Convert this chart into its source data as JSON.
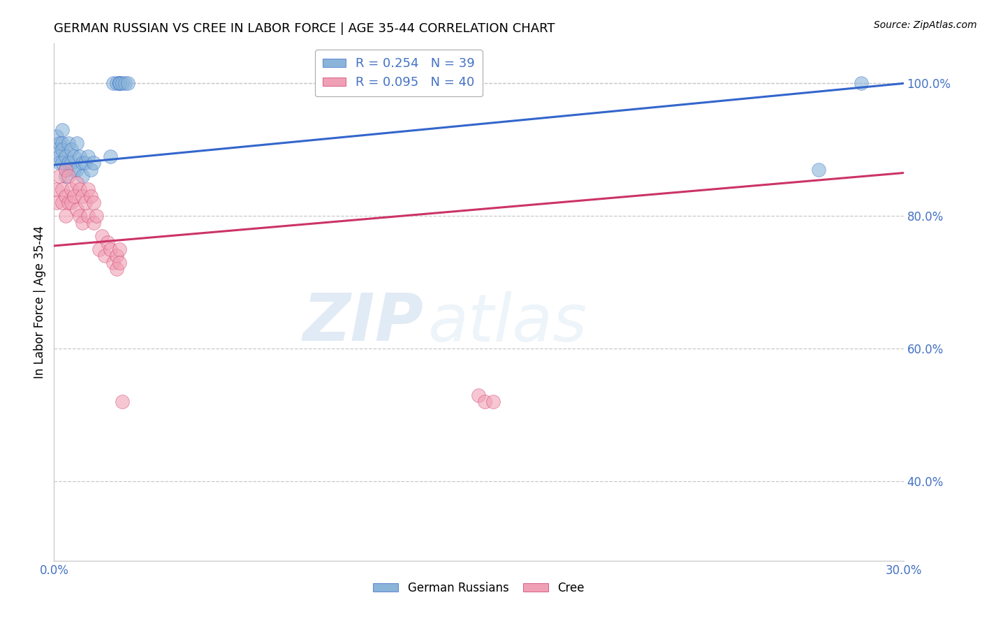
{
  "title": "GERMAN RUSSIAN VS CREE IN LABOR FORCE | AGE 35-44 CORRELATION CHART",
  "source": "Source: ZipAtlas.com",
  "ylabel": "In Labor Force | Age 35-44",
  "xlim": [
    0.0,
    0.3
  ],
  "ylim": [
    0.28,
    1.06
  ],
  "xticks": [
    0.0,
    0.3
  ],
  "xticklabels": [
    "0.0%",
    "30.0%"
  ],
  "yticks": [
    0.4,
    0.6,
    0.8,
    1.0
  ],
  "yticklabels": [
    "40.0%",
    "60.0%",
    "80.0%",
    "100.0%"
  ],
  "background_color": "#ffffff",
  "grid_color": "#c8c8c8",
  "german_russians": {
    "label": "German Russians",
    "R": 0.254,
    "N": 39,
    "color": "#8ab4d8",
    "line_color": "#3366cc",
    "x": [
      0.001,
      0.001,
      0.002,
      0.002,
      0.002,
      0.003,
      0.003,
      0.003,
      0.003,
      0.004,
      0.004,
      0.004,
      0.005,
      0.005,
      0.006,
      0.006,
      0.007,
      0.007,
      0.008,
      0.008,
      0.009,
      0.01,
      0.01,
      0.011,
      0.012,
      0.013,
      0.014,
      0.02,
      0.021,
      0.022,
      0.023,
      0.023,
      0.023,
      0.023,
      0.024,
      0.025,
      0.026,
      0.27,
      0.285
    ],
    "y": [
      0.92,
      0.9,
      0.91,
      0.89,
      0.88,
      0.93,
      0.91,
      0.9,
      0.88,
      0.89,
      0.87,
      0.86,
      0.91,
      0.88,
      0.9,
      0.88,
      0.89,
      0.87,
      0.91,
      0.87,
      0.89,
      0.88,
      0.86,
      0.88,
      0.89,
      0.87,
      0.88,
      0.89,
      1.0,
      1.0,
      1.0,
      1.0,
      1.0,
      1.0,
      1.0,
      1.0,
      1.0,
      0.87,
      1.0
    ],
    "line_x0": 0.0,
    "line_x1": 0.3,
    "line_y0": 0.877,
    "line_y1": 1.0
  },
  "cree": {
    "label": "Cree",
    "R": 0.095,
    "N": 40,
    "color": "#f0a0b5",
    "line_color": "#cc3366",
    "x": [
      0.001,
      0.001,
      0.002,
      0.003,
      0.003,
      0.004,
      0.004,
      0.004,
      0.005,
      0.005,
      0.006,
      0.006,
      0.007,
      0.008,
      0.008,
      0.009,
      0.009,
      0.01,
      0.01,
      0.011,
      0.012,
      0.012,
      0.013,
      0.014,
      0.014,
      0.015,
      0.016,
      0.017,
      0.018,
      0.019,
      0.02,
      0.021,
      0.022,
      0.022,
      0.023,
      0.023,
      0.024,
      0.15,
      0.152,
      0.155
    ],
    "y": [
      0.84,
      0.82,
      0.86,
      0.84,
      0.82,
      0.87,
      0.83,
      0.8,
      0.86,
      0.82,
      0.84,
      0.82,
      0.83,
      0.85,
      0.81,
      0.84,
      0.8,
      0.83,
      0.79,
      0.82,
      0.84,
      0.8,
      0.83,
      0.82,
      0.79,
      0.8,
      0.75,
      0.77,
      0.74,
      0.76,
      0.75,
      0.73,
      0.74,
      0.72,
      0.75,
      0.73,
      0.52,
      0.53,
      0.52,
      0.52
    ],
    "line_x0": 0.0,
    "line_x1": 0.3,
    "line_y0": 0.755,
    "line_y1": 0.865
  },
  "legend_fontsize": 13,
  "watermark_zip": "ZIP",
  "watermark_atlas": "atlas",
  "title_fontsize": 13,
  "axis_label_fontsize": 12,
  "tick_fontsize": 12,
  "tick_color": "#4472c4",
  "source_fontsize": 10
}
